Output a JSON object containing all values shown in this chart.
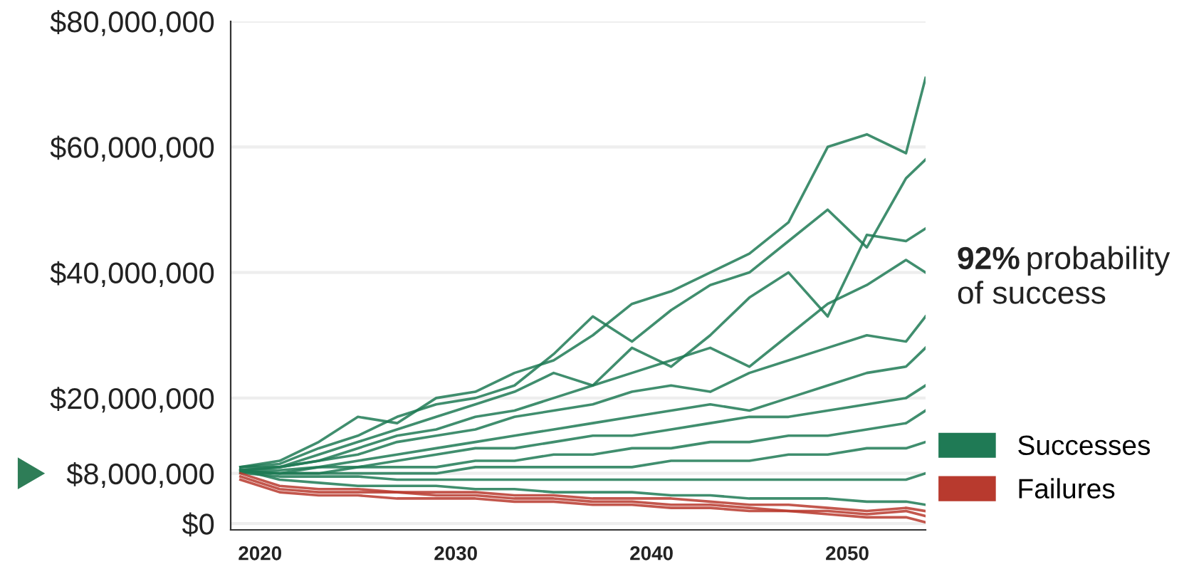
{
  "chart_data": {
    "type": "line",
    "x": [
      2019,
      2021,
      2023,
      2025,
      2027,
      2029,
      2031,
      2033,
      2035,
      2037,
      2039,
      2041,
      2043,
      2045,
      2047,
      2049,
      2051,
      2053,
      2054
    ],
    "xlim": [
      2018.5,
      2054
    ],
    "xticks": [
      2020,
      2030,
      2040,
      2050
    ],
    "ylim": [
      -1000000,
      80000000
    ],
    "yticks": [
      {
        "value": 0,
        "label": "$0"
      },
      {
        "value": 8000000,
        "label": "$8,000,000"
      },
      {
        "value": 20000000,
        "label": "$20,000,000"
      },
      {
        "value": 40000000,
        "label": "$40,000,000"
      },
      {
        "value": 60000000,
        "label": "$60,000,000"
      },
      {
        "value": 80000000,
        "label": "$80,000,000"
      }
    ],
    "grid": "y",
    "legend": "right",
    "marker": "none",
    "line_style": "solid",
    "annotations": [
      "92% probability of success"
    ],
    "series": [
      {
        "name": "Successes",
        "color": "#1f7a55",
        "values": [
          9000000,
          10000000,
          13000000,
          17000000,
          16000000,
          20000000,
          21000000,
          24000000,
          26000000,
          30000000,
          35000000,
          37000000,
          40000000,
          43000000,
          48000000,
          60000000,
          62000000,
          59000000,
          71000000
        ]
      },
      {
        "color": "#1f7a55",
        "values": [
          9000000,
          9500000,
          12000000,
          14000000,
          17000000,
          19000000,
          20000000,
          22000000,
          27000000,
          33000000,
          29000000,
          34000000,
          38000000,
          40000000,
          45000000,
          50000000,
          44000000,
          55000000,
          58000000
        ]
      },
      {
        "color": "#1f7a55",
        "values": [
          9000000,
          9000000,
          11000000,
          13000000,
          15000000,
          17000000,
          19000000,
          21000000,
          24000000,
          22000000,
          28000000,
          25000000,
          30000000,
          36000000,
          40000000,
          33000000,
          46000000,
          45000000,
          47000000
        ]
      },
      {
        "color": "#1f7a55",
        "values": [
          8500000,
          9000000,
          10000000,
          12000000,
          14000000,
          15000000,
          17000000,
          18000000,
          20000000,
          22000000,
          24000000,
          26000000,
          28000000,
          25000000,
          30000000,
          35000000,
          38000000,
          42000000,
          40000000
        ]
      },
      {
        "color": "#1f7a55",
        "values": [
          8500000,
          9000000,
          10000000,
          11000000,
          13000000,
          14000000,
          15000000,
          17000000,
          18000000,
          19000000,
          21000000,
          22000000,
          21000000,
          24000000,
          26000000,
          28000000,
          30000000,
          29000000,
          33000000
        ]
      },
      {
        "color": "#1f7a55",
        "values": [
          8500000,
          8500000,
          9000000,
          10000000,
          11000000,
          12000000,
          13000000,
          14000000,
          15000000,
          16000000,
          17000000,
          18000000,
          19000000,
          18000000,
          20000000,
          22000000,
          24000000,
          25000000,
          28000000
        ]
      },
      {
        "color": "#1f7a55",
        "values": [
          8400000,
          8000000,
          9000000,
          9000000,
          10000000,
          11000000,
          12000000,
          12000000,
          13000000,
          14000000,
          14000000,
          15000000,
          16000000,
          17000000,
          17000000,
          18000000,
          19000000,
          20000000,
          22000000
        ]
      },
      {
        "color": "#1f7a55",
        "values": [
          8300000,
          8000000,
          8000000,
          9000000,
          9000000,
          9000000,
          10000000,
          10000000,
          11000000,
          11000000,
          12000000,
          12000000,
          13000000,
          13000000,
          14000000,
          14000000,
          15000000,
          16000000,
          18000000
        ]
      },
      {
        "color": "#1f7a55",
        "values": [
          8200000,
          8000000,
          8000000,
          8000000,
          8000000,
          8000000,
          9000000,
          9000000,
          9000000,
          9000000,
          9000000,
          10000000,
          10000000,
          10000000,
          11000000,
          11000000,
          12000000,
          12000000,
          13000000
        ]
      },
      {
        "color": "#1f7a55",
        "values": [
          8100000,
          7500000,
          7500000,
          7500000,
          7000000,
          7000000,
          7000000,
          7000000,
          7000000,
          7000000,
          7000000,
          7000000,
          7000000,
          7000000,
          7000000,
          7000000,
          7000000,
          7000000,
          8000000
        ]
      },
      {
        "color": "#1f7a55",
        "values": [
          8600000,
          7000000,
          6500000,
          6000000,
          6000000,
          6000000,
          5500000,
          5500000,
          5000000,
          5000000,
          5000000,
          4500000,
          4500000,
          4000000,
          4000000,
          4000000,
          3500000,
          3500000,
          3000000
        ]
      },
      {
        "name": "Failures",
        "color": "#b83a2e",
        "values": [
          7000000,
          5000000,
          4500000,
          4500000,
          4000000,
          4000000,
          4000000,
          3500000,
          3500000,
          3000000,
          3000000,
          2500000,
          2500000,
          2000000,
          2000000,
          1500000,
          1000000,
          1000000,
          200000
        ]
      },
      {
        "color": "#b83a2e",
        "values": [
          7500000,
          5500000,
          5000000,
          5000000,
          5000000,
          4500000,
          4500000,
          4000000,
          4000000,
          3500000,
          3500000,
          3000000,
          3000000,
          2500000,
          2000000,
          2000000,
          1500000,
          2000000,
          1200000
        ]
      },
      {
        "color": "#b83a2e",
        "values": [
          8000000,
          6000000,
          5500000,
          5500000,
          5000000,
          5000000,
          5000000,
          4500000,
          4500000,
          4000000,
          4000000,
          4000000,
          3500000,
          3000000,
          3000000,
          2500000,
          2000000,
          2500000,
          2000000
        ]
      }
    ]
  }
}
